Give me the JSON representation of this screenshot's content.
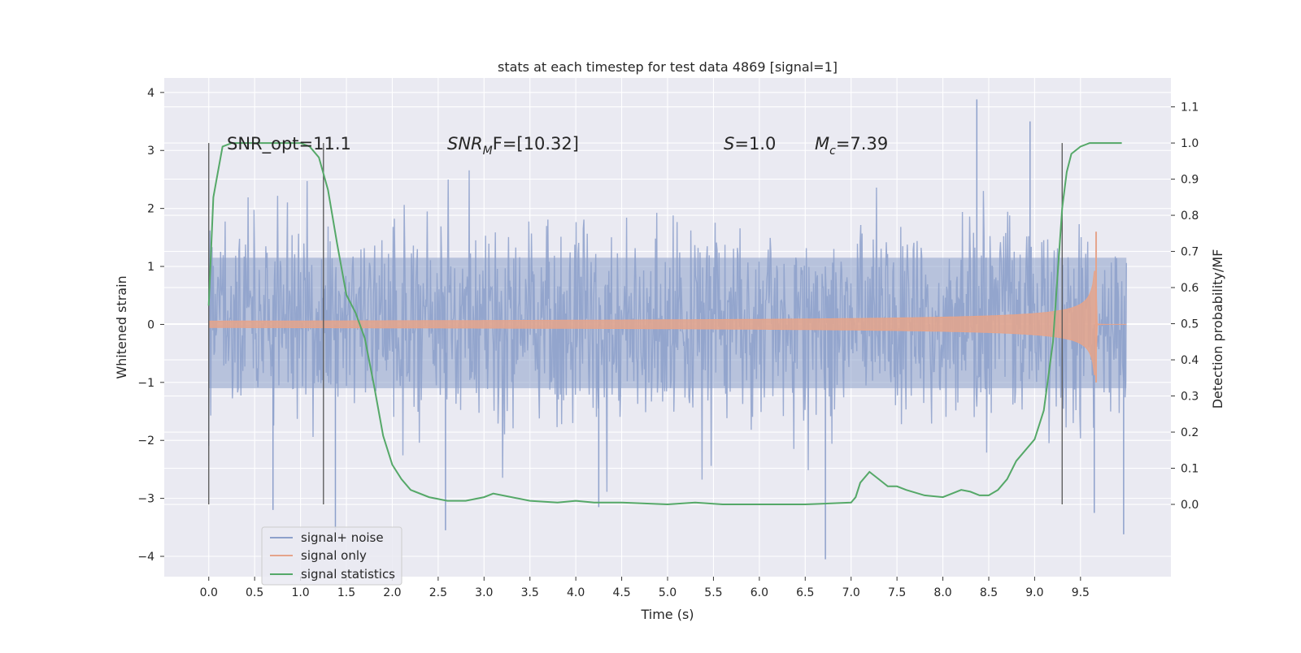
{
  "chart_data": {
    "type": "line",
    "title": "stats at each timestep for test data 4869 [signal=1]",
    "xlabel": "Time (s)",
    "ylabel_left": "Whitened strain",
    "ylabel_right": "Detection probability/MF",
    "xlim": [
      -0.485,
      10.485
    ],
    "ylim_left": [
      -4.35,
      4.25
    ],
    "ylim_right": [
      -0.2,
      1.18
    ],
    "x_ticks": [
      "0.0",
      "0.5",
      "1.0",
      "1.5",
      "2.0",
      "2.5",
      "3.0",
      "3.5",
      "4.0",
      "4.5",
      "5.0",
      "5.5",
      "6.0",
      "6.5",
      "7.0",
      "7.5",
      "8.0",
      "8.5",
      "9.0",
      "9.5"
    ],
    "y_ticks_left": [
      "−4",
      "−3",
      "−2",
      "−1",
      "0",
      "1",
      "2",
      "3",
      "4"
    ],
    "y_ticks_right": [
      "0.0",
      "0.1",
      "0.2",
      "0.3",
      "0.4",
      "0.5",
      "0.6",
      "0.7",
      "0.8",
      "0.9",
      "1.0",
      "1.1"
    ],
    "grid": true,
    "legend_position": "lower-left",
    "colors": {
      "noise": "#8da0cb",
      "signal": "#e5a48b",
      "stats": "#55a868",
      "vline": "#555555",
      "background": "#eaeaf2",
      "grid": "#ffffff"
    },
    "series": [
      {
        "name": "signal+ noise",
        "kind": "noise-strain",
        "x_range": [
          0.0,
          10.0
        ],
        "typical_range": [
          -1.5,
          1.8
        ],
        "extremes": [
          {
            "x": 8.37,
            "y": 3.88
          },
          {
            "x": 8.95,
            "y": 3.5
          },
          {
            "x": 6.72,
            "y": -4.05
          },
          {
            "x": 1.38,
            "y": -3.55
          },
          {
            "x": 2.58,
            "y": -3.55
          },
          {
            "x": 9.97,
            "y": -3.62
          },
          {
            "x": 9.65,
            "y": -3.25
          },
          {
            "x": 0.7,
            "y": -3.2
          },
          {
            "x": 4.25,
            "y": -3.15
          }
        ]
      },
      {
        "name": "signal only",
        "kind": "chirp",
        "x_range": [
          0.0,
          10.0
        ],
        "merger_time": 9.67,
        "peak_amplitude": 1.6,
        "amplitude_at": [
          {
            "x": 5.0,
            "y": 0.02
          },
          {
            "x": 6.5,
            "y": 0.08
          },
          {
            "x": 7.5,
            "y": 0.15
          },
          {
            "x": 8.5,
            "y": 0.28
          },
          {
            "x": 9.3,
            "y": 0.5
          },
          {
            "x": 9.55,
            "y": 0.75
          }
        ]
      },
      {
        "name": "signal statistics",
        "axis": "right",
        "x": [
          0.0,
          0.05,
          0.1,
          0.15,
          0.25,
          0.35,
          0.5,
          0.7,
          0.9,
          1.0,
          1.1,
          1.2,
          1.3,
          1.4,
          1.5,
          1.6,
          1.7,
          1.8,
          1.9,
          2.0,
          2.1,
          2.2,
          2.4,
          2.6,
          2.8,
          3.0,
          3.1,
          3.3,
          3.5,
          3.8,
          4.0,
          4.2,
          4.5,
          5.0,
          5.3,
          5.6,
          6.0,
          6.5,
          7.0,
          7.05,
          7.1,
          7.2,
          7.3,
          7.4,
          7.5,
          7.6,
          7.8,
          8.0,
          8.1,
          8.2,
          8.3,
          8.4,
          8.5,
          8.6,
          8.7,
          8.8,
          9.0,
          9.1,
          9.2,
          9.3,
          9.35,
          9.4,
          9.5,
          9.6,
          9.8,
          9.95
        ],
        "y": [
          0.55,
          0.85,
          0.92,
          0.99,
          1.0,
          1.0,
          1.0,
          1.0,
          1.0,
          1.0,
          0.99,
          0.96,
          0.87,
          0.72,
          0.58,
          0.53,
          0.46,
          0.33,
          0.19,
          0.11,
          0.07,
          0.04,
          0.02,
          0.01,
          0.01,
          0.02,
          0.03,
          0.02,
          0.01,
          0.005,
          0.01,
          0.005,
          0.005,
          0.0,
          0.005,
          0.0,
          0.0,
          0.0,
          0.005,
          0.02,
          0.06,
          0.09,
          0.07,
          0.05,
          0.05,
          0.04,
          0.025,
          0.02,
          0.03,
          0.04,
          0.035,
          0.025,
          0.025,
          0.04,
          0.07,
          0.12,
          0.18,
          0.26,
          0.45,
          0.82,
          0.92,
          0.97,
          0.99,
          1.0,
          1.0,
          1.0
        ]
      }
    ],
    "vertical_lines": [
      0.0,
      1.25,
      9.3
    ],
    "vertical_lines_range_right": [
      0.0,
      1.0
    ],
    "annotations": {
      "snr_opt": "SNR_opt=11.1",
      "snr_mf_main": "SNR",
      "snr_mf_sub": "M",
      "snr_mf_tail": "F=[10.32]",
      "s_main": "S",
      "s_tail": "=1.0",
      "mc_main": "M",
      "mc_sub": "c",
      "mc_tail": "=7.39"
    }
  }
}
